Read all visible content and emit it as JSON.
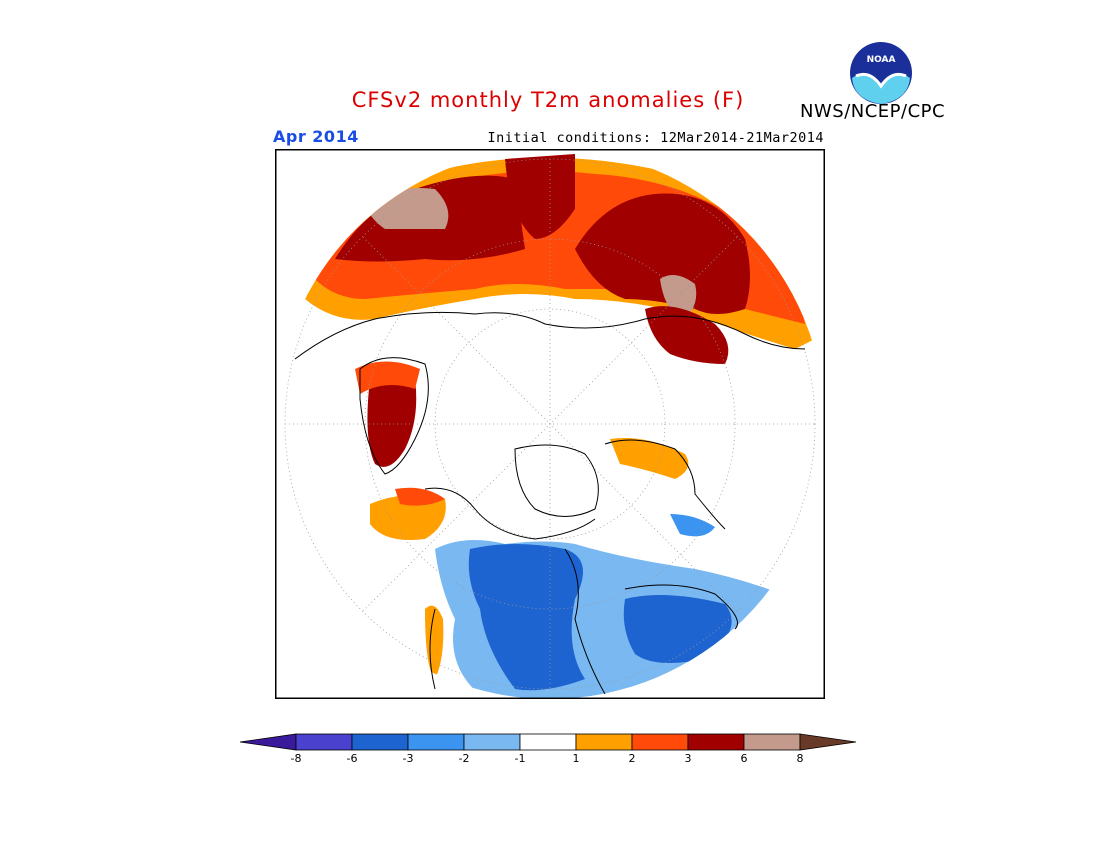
{
  "header": {
    "title": "CFSv2 monthly T2m anomalies (F)",
    "agency": "NWS/NCEP/CPC",
    "logo_text": "NOAA",
    "valid_month": "Apr 2014",
    "initial_conditions": "Initial conditions: 12Mar2014-21Mar2014"
  },
  "colors": {
    "title": "#dd0000",
    "valid_month": "#1a4de6",
    "neg8": "#3a1a9a",
    "neg6": "#4b41cf",
    "neg3": "#1e64d0",
    "neg2": "#3b94f0",
    "neg1": "#7ab8f2",
    "neutral": "#ffffff",
    "pos1": "#ffa000",
    "pos2": "#ff4a0a",
    "pos3": "#a00000",
    "pos6": "#c39a8c",
    "pos8": "#6a3a28"
  },
  "map": {
    "projection": "north polar stereographic",
    "variable": "2m temperature anomaly",
    "units": "F"
  },
  "colorbar": {
    "tick_labels": [
      "-8",
      "-6",
      "-3",
      "-2",
      "-1",
      "1",
      "2",
      "3",
      "6",
      "8"
    ],
    "bins": [
      {
        "color_key": "neg8"
      },
      {
        "color_key": "neg6"
      },
      {
        "color_key": "neg3"
      },
      {
        "color_key": "neg2"
      },
      {
        "color_key": "neg1"
      },
      {
        "color_key": "neutral"
      },
      {
        "color_key": "pos1"
      },
      {
        "color_key": "pos2"
      },
      {
        "color_key": "pos3"
      },
      {
        "color_key": "pos6"
      },
      {
        "color_key": "pos8"
      }
    ]
  }
}
